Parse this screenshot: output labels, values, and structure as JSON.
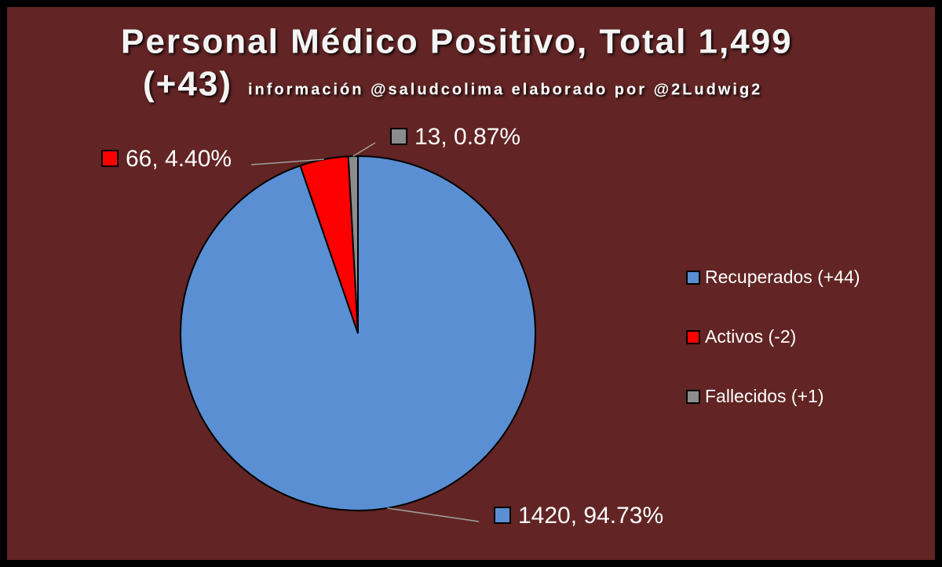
{
  "chart_data": {
    "type": "pie",
    "title": [
      "Personal Médico Positivo, Total 1,499",
      "(+43)"
    ],
    "subtitle": "información @saludcolima elaborado por @2Ludwig2",
    "categories": [
      "Recuperados (+44)",
      "Activos (-2)",
      "Fallecidos (+1)"
    ],
    "values": [
      1420,
      66,
      13
    ],
    "value_labels": [
      "1420, 94.73%",
      "66, 4.40%",
      "13, 0.87%"
    ],
    "colors": [
      "#5b8fd3",
      "#ff0000",
      "#8c8c8c"
    ]
  }
}
